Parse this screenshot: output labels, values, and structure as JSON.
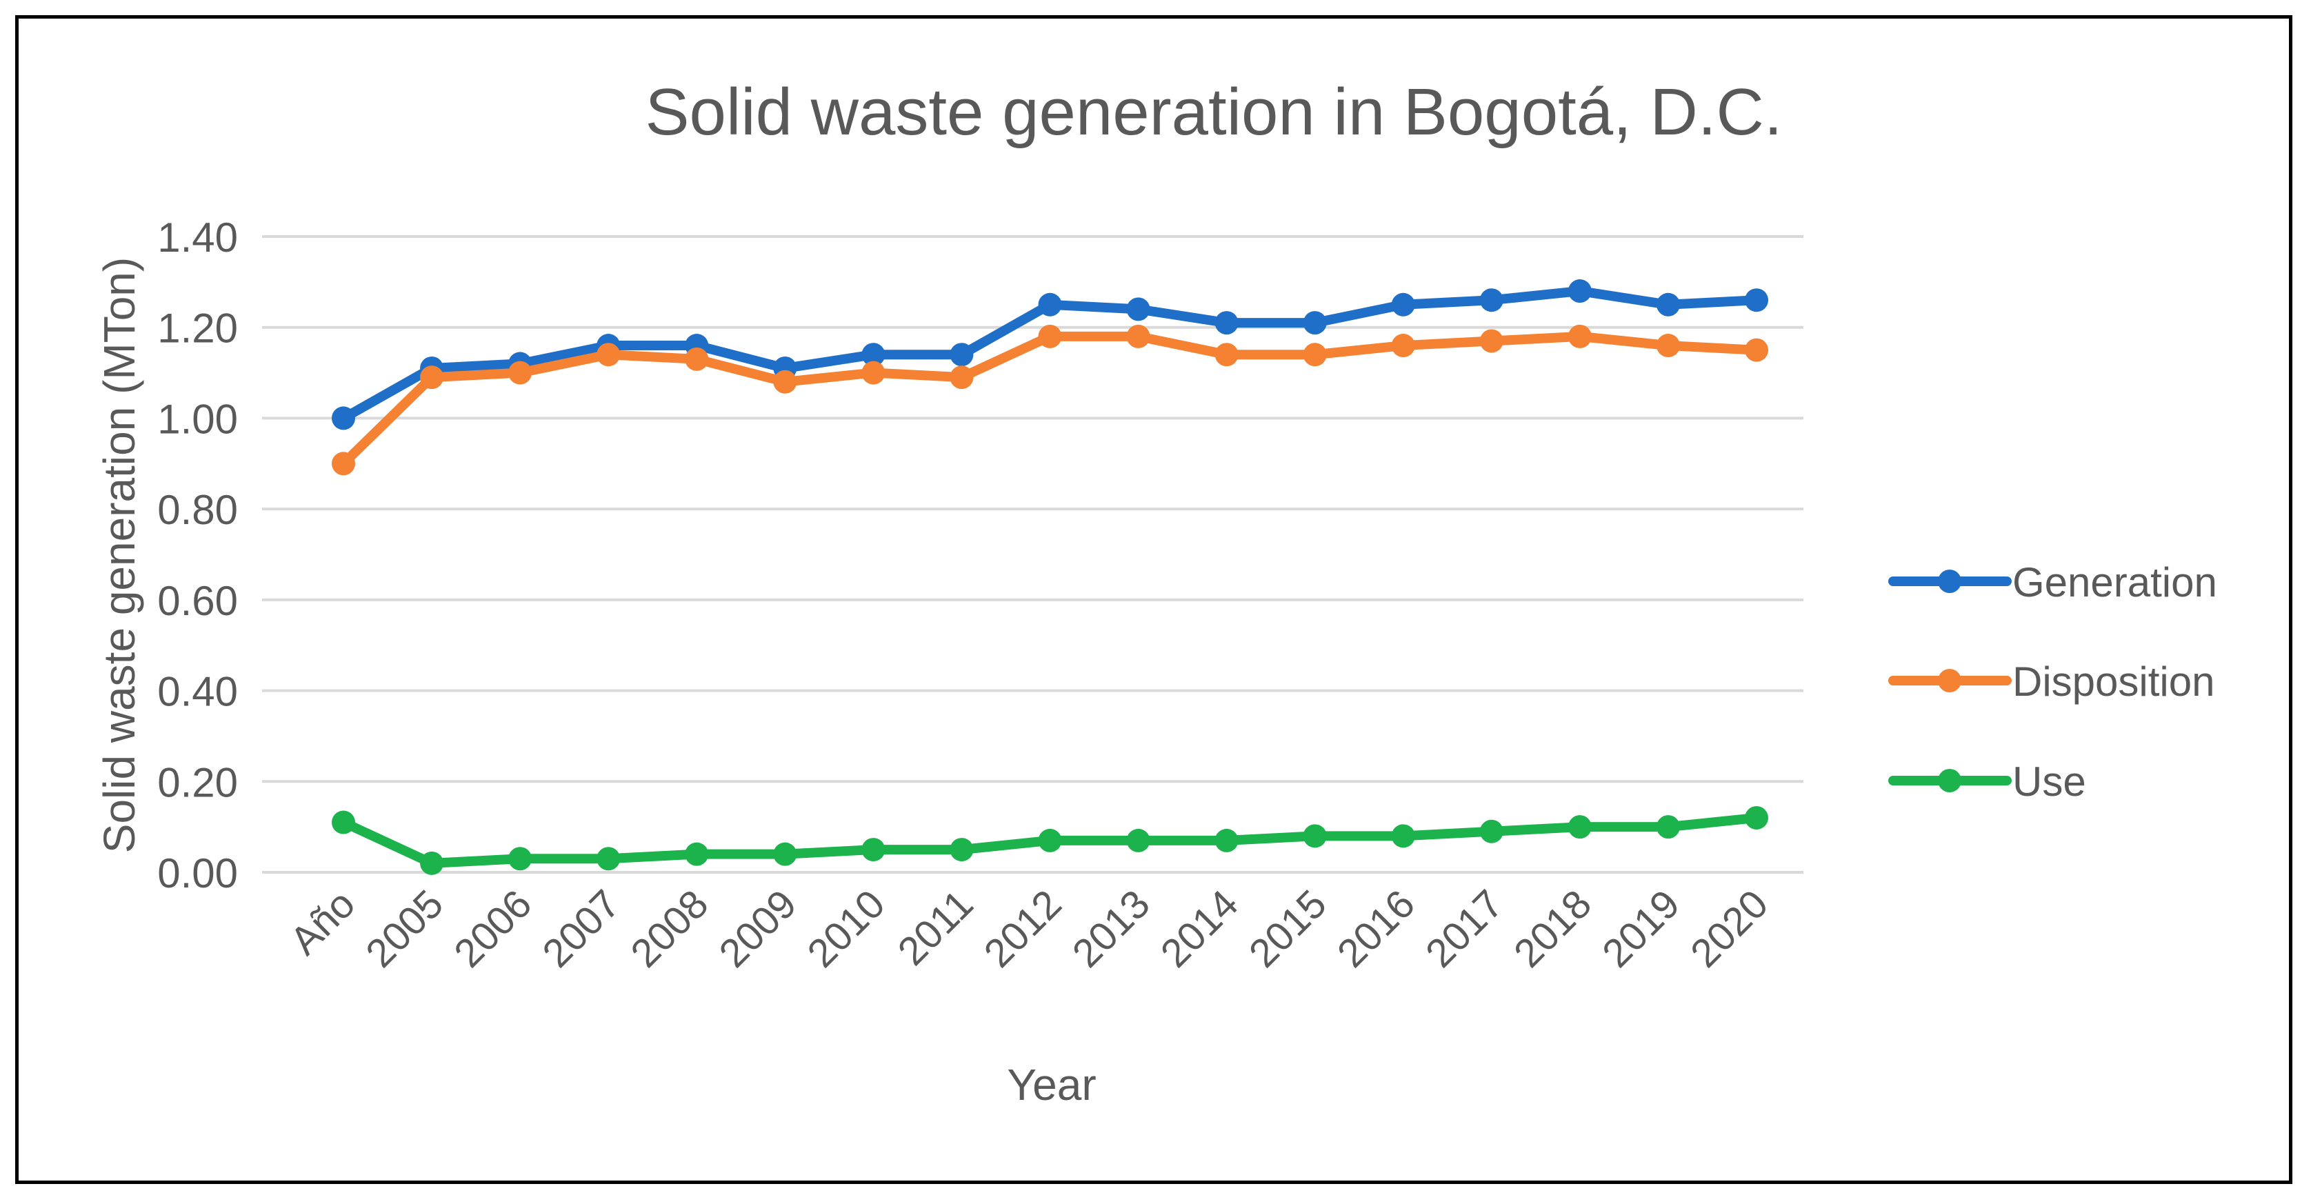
{
  "chart_data": {
    "type": "line",
    "title": "Solid waste generation in Bogotá, D.C.",
    "xlabel": "Year",
    "ylabel": "Solid waste generation (MTon)",
    "ylim": [
      0,
      1.4
    ],
    "yticks": [
      "0.00",
      "0.20",
      "0.40",
      "0.60",
      "0.80",
      "1.00",
      "1.20",
      "1.40"
    ],
    "grid": true,
    "legend_position": "right",
    "categories": [
      "Año",
      "2005",
      "2006",
      "2007",
      "2008",
      "2009",
      "2010",
      "2011",
      "2012",
      "2013",
      "2014",
      "2015",
      "2016",
      "2017",
      "2018",
      "2019",
      "2020"
    ],
    "series": [
      {
        "name": "Generation",
        "color": "#1F6FC8",
        "values": [
          1.0,
          1.11,
          1.12,
          1.16,
          1.16,
          1.11,
          1.14,
          1.14,
          1.25,
          1.24,
          1.21,
          1.21,
          1.25,
          1.26,
          1.28,
          1.25,
          1.26
        ]
      },
      {
        "name": "Disposition",
        "color": "#F58232",
        "values": [
          0.9,
          1.09,
          1.1,
          1.14,
          1.13,
          1.08,
          1.1,
          1.09,
          1.18,
          1.18,
          1.14,
          1.14,
          1.16,
          1.17,
          1.18,
          1.16,
          1.15
        ]
      },
      {
        "name": "Use",
        "color": "#1DB34C",
        "values": [
          0.11,
          0.02,
          0.03,
          0.03,
          0.04,
          0.04,
          0.05,
          0.05,
          0.07,
          0.07,
          0.07,
          0.08,
          0.08,
          0.09,
          0.1,
          0.1,
          0.12
        ]
      }
    ]
  }
}
